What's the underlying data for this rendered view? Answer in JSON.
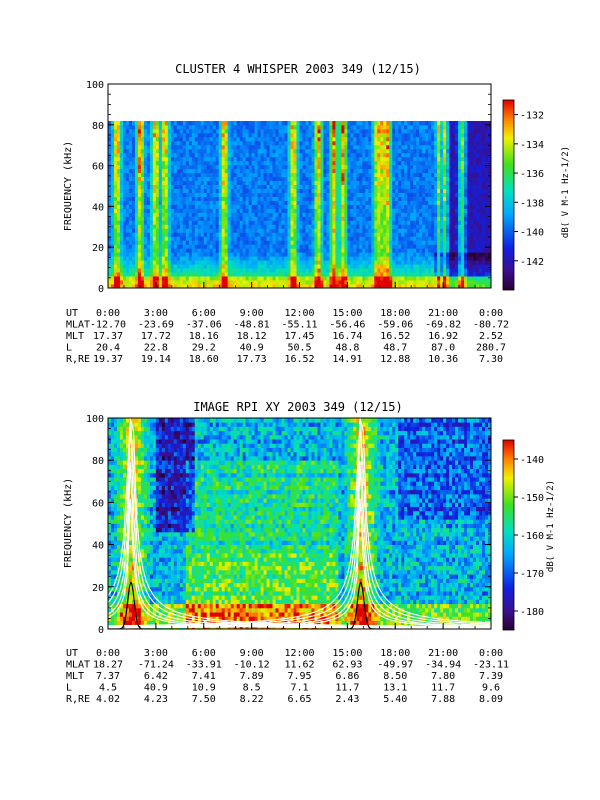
{
  "chart_data": [
    {
      "type": "heatmap",
      "title": "CLUSTER 4 WHISPER 2003 349 (12/15)",
      "ylabel": "FREQUENCY (kHz)",
      "ylim": [
        0,
        100
      ],
      "y_ticks": [
        "0",
        "20",
        "40",
        "60",
        "80",
        "100"
      ],
      "data_top_khz": 80,
      "colorbar": {
        "label": "dB( V M-1 Hz-1/2)",
        "range": [
          -144,
          -131
        ],
        "ticks": [
          "-132",
          "-134",
          "-136",
          "-138",
          "-140",
          "-142"
        ]
      },
      "table": {
        "row_labels": [
          "UT",
          "MLAT",
          "MLT",
          "L",
          "R,RE"
        ],
        "columns": [
          [
            "0:00",
            "-12.70",
            "17.37",
            "20.4",
            "19.37"
          ],
          [
            "3:00",
            "-23.69",
            "17.72",
            "22.8",
            "19.14"
          ],
          [
            "6:00",
            "-37.06",
            "18.16",
            "29.2",
            "18.60"
          ],
          [
            "9:00",
            "-48.81",
            "18.12",
            "40.9",
            "17.73"
          ],
          [
            "12:00",
            "-55.11",
            "17.45",
            "50.5",
            "16.52"
          ],
          [
            "15:00",
            "-56.46",
            "16.74",
            "48.8",
            "14.91"
          ],
          [
            "18:00",
            "-59.06",
            "16.52",
            "48.7",
            "12.88"
          ],
          [
            "21:00",
            "-69.82",
            "16.92",
            "87.0",
            "10.36"
          ],
          [
            "0:00",
            "-80.72",
            "2.52",
            "280.7",
            "7.30"
          ]
        ]
      }
    },
    {
      "type": "heatmap",
      "title": "IMAGE RPI XY 2003 349 (12/15)",
      "ylabel": "FREQUENCY (kHz)",
      "ylim": [
        0,
        100
      ],
      "y_ticks": [
        "0",
        "20",
        "40",
        "60",
        "80",
        "100"
      ],
      "data_top_khz": 100,
      "colorbar": {
        "label": "dB( V M-1 Hz-1/2)",
        "range": [
          -185,
          -135
        ],
        "ticks": [
          "-140",
          "-150",
          "-160",
          "-170",
          "-180"
        ]
      },
      "table": {
        "row_labels": [
          "UT",
          "MLAT",
          "MLT",
          "L",
          "R,RE"
        ],
        "columns": [
          [
            "0:00",
            "18.27",
            "7.37",
            "4.5",
            "4.02"
          ],
          [
            "3:00",
            "-71.24",
            "6.42",
            "40.9",
            "4.23"
          ],
          [
            "6:00",
            "-33.91",
            "7.41",
            "10.9",
            "7.50"
          ],
          [
            "9:00",
            "-10.12",
            "7.89",
            "8.5",
            "8.22"
          ],
          [
            "12:00",
            "11.62",
            "7.95",
            "7.1",
            "6.65"
          ],
          [
            "15:00",
            "62.93",
            "6.86",
            "11.7",
            "2.43"
          ],
          [
            "18:00",
            "-49.97",
            "8.50",
            "13.1",
            "5.40"
          ],
          [
            "21:00",
            "-34.94",
            "7.80",
            "11.7",
            "7.88"
          ],
          [
            "0:00",
            "-23.11",
            "7.39",
            "9.6",
            "8.09"
          ]
        ]
      }
    }
  ]
}
